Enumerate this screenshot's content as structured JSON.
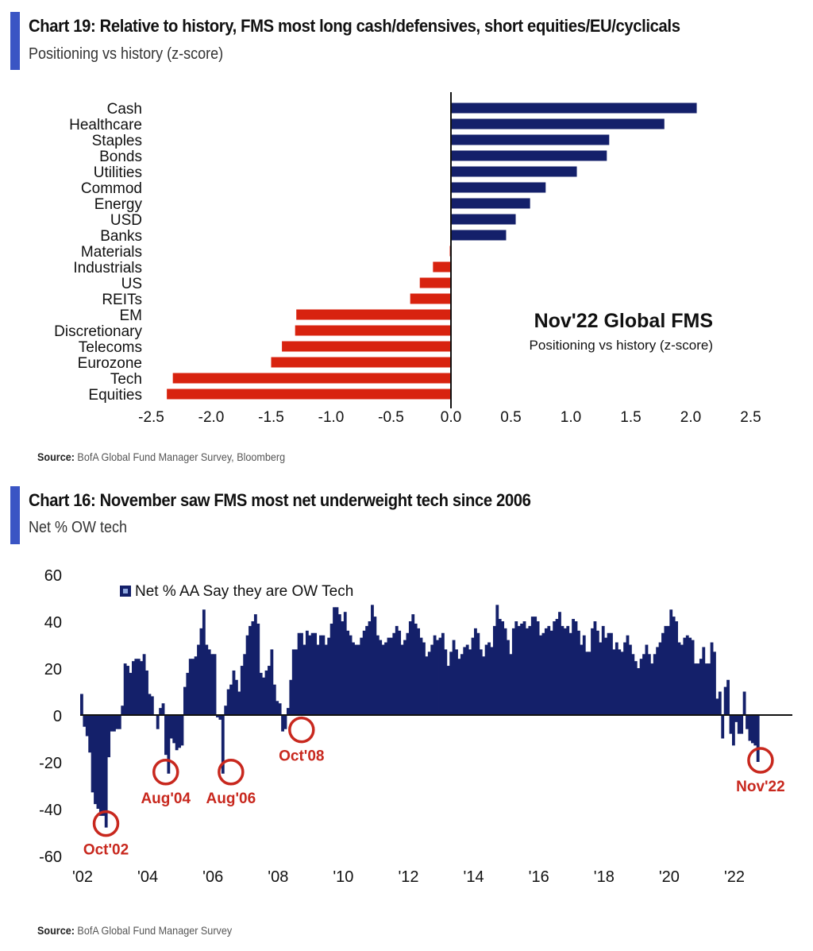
{
  "colors": {
    "accent_bar": "#3a55c4",
    "positive": "#14206a",
    "negative": "#d8230f",
    "annotation": "#c8281e",
    "axis": "#111111"
  },
  "chart19": {
    "title": "Chart 19: Relative to history, FMS most long cash/defensives, short equities/EU/cyclicals",
    "subtitle": "Positioning vs history (z-score)",
    "inset_title": "Nov'22 Global FMS",
    "inset_subtitle": "Positioning vs history (z-score)",
    "source_label": "Source:",
    "source_text": " BofA Global Fund Manager Survey, Bloomberg"
  },
  "chart16": {
    "title": "Chart 16: November saw FMS most net underweight tech since 2006",
    "subtitle": "Net % OW tech",
    "source_label": "Source:",
    "source_text": " BofA Global Fund Manager Survey"
  },
  "chart_data": [
    {
      "type": "bar",
      "orientation": "horizontal",
      "title": "Nov'22 Global FMS",
      "subtitle": "Positioning vs history (z-score)",
      "xlabel": "",
      "ylabel": "",
      "xlim": [
        -2.5,
        2.5
      ],
      "x_ticks": [
        "-2.5",
        "-2.0",
        "-1.5",
        "-1.0",
        "-0.5",
        "0.0",
        "0.5",
        "1.0",
        "1.5",
        "2.0",
        "2.5"
      ],
      "grid": false,
      "categories": [
        "Cash",
        "Healthcare",
        "Staples",
        "Bonds",
        "Utilities",
        "Commod",
        "Energy",
        "USD",
        "Banks",
        "Materials",
        "Industrials",
        "US",
        "REITs",
        "EM",
        "Discretionary",
        "Telecoms",
        "Eurozone",
        "Tech",
        "Equities"
      ],
      "values": [
        2.05,
        1.78,
        1.32,
        1.3,
        1.05,
        0.79,
        0.66,
        0.54,
        0.46,
        -0.01,
        -0.15,
        -0.26,
        -0.34,
        -1.29,
        -1.3,
        -1.41,
        -1.5,
        -2.32,
        -2.37
      ]
    },
    {
      "type": "bar",
      "title": "Net % OW tech",
      "legend": [
        "Net % AA Say they are OW Tech"
      ],
      "legend_position": "top-left",
      "xlabel": "",
      "ylabel": "",
      "ylim": [
        -60,
        60
      ],
      "y_ticks": [
        "60",
        "40",
        "20",
        "0",
        "-20",
        "-40",
        "-60"
      ],
      "x_ticks": [
        "'02",
        "'04",
        "'06",
        "'08",
        "'10",
        "'12",
        "'14",
        "'16",
        "'18",
        "'20",
        "'22"
      ],
      "x_start": "Jan 2002",
      "x_frequency": "monthly",
      "grid": false,
      "annotations": [
        {
          "label": "Oct'02",
          "x": "2002-10",
          "y": -47
        },
        {
          "label": "Aug'04",
          "x": "2004-08",
          "y": -25
        },
        {
          "label": "Aug'06",
          "x": "2006-08",
          "y": -25
        },
        {
          "label": "Oct'08",
          "x": "2008-10",
          "y": -7
        },
        {
          "label": "Nov'22",
          "x": "2022-11",
          "y": -20
        }
      ],
      "series": [
        {
          "name": "Net % AA Say they are OW Tech",
          "values": [
            9,
            -5,
            -9,
            -16,
            -33,
            -38,
            -40,
            -43,
            -43,
            -48,
            -18,
            -7,
            -7,
            -6,
            -6,
            4,
            22,
            21,
            18,
            23,
            24,
            24,
            23,
            26,
            19,
            9,
            8,
            0,
            -6,
            3,
            5,
            -17,
            -25,
            -10,
            -12,
            -15,
            -14,
            -13,
            12,
            18,
            24,
            24,
            25,
            30,
            37,
            45,
            30,
            28,
            26,
            26,
            -1,
            -2,
            -25,
            4,
            11,
            13,
            19,
            15,
            10,
            21,
            26,
            34,
            38,
            40,
            43,
            39,
            18,
            16,
            19,
            21,
            28,
            13,
            6,
            5,
            -7,
            -6,
            3,
            15,
            28,
            28,
            35,
            35,
            30,
            36,
            34,
            35,
            35,
            30,
            34,
            34,
            30,
            33,
            39,
            46,
            46,
            43,
            40,
            44,
            36,
            34,
            31,
            30,
            30,
            33,
            36,
            38,
            40,
            47,
            42,
            34,
            32,
            30,
            31,
            33,
            33,
            35,
            38,
            36,
            30,
            32,
            35,
            40,
            43,
            39,
            37,
            33,
            31,
            25,
            27,
            30,
            34,
            32,
            33,
            35,
            28,
            21,
            27,
            32,
            28,
            24,
            26,
            29,
            30,
            28,
            33,
            37,
            35,
            28,
            25,
            30,
            31,
            29,
            38,
            47,
            41,
            40,
            37,
            32,
            26,
            37,
            40,
            38,
            39,
            40,
            37,
            38,
            42,
            42,
            40,
            34,
            35,
            37,
            38,
            36,
            40,
            41,
            44,
            38,
            37,
            38,
            35,
            41,
            40,
            36,
            30,
            34,
            27,
            27,
            37,
            40,
            36,
            31,
            38,
            33,
            35,
            35,
            28,
            31,
            28,
            27,
            31,
            34,
            30,
            26,
            23,
            20,
            24,
            26,
            30,
            26,
            22,
            26,
            29,
            31,
            35,
            38,
            38,
            45,
            42,
            40,
            31,
            30,
            33,
            34,
            33,
            32,
            22,
            22,
            24,
            29,
            22,
            22,
            31,
            27,
            7,
            10,
            -10,
            12,
            15,
            -8,
            -13,
            -3,
            -8,
            -8,
            10,
            -6,
            -11,
            -12,
            -13,
            -20
          ]
        }
      ]
    }
  ]
}
